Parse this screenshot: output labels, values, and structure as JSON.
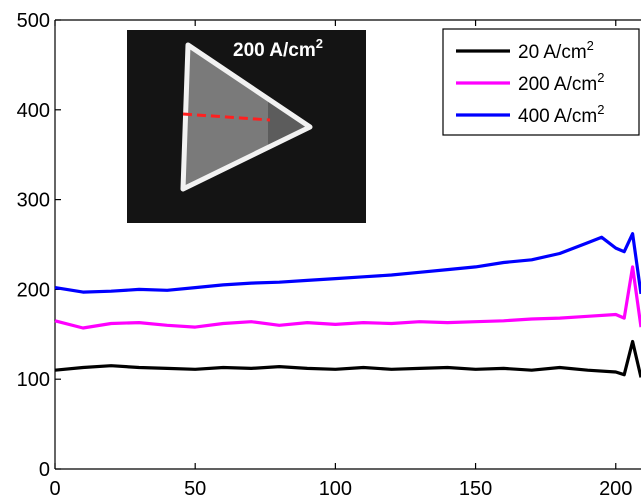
{
  "chart_data": {
    "type": "line",
    "title": "",
    "xlabel": "",
    "ylabel": "",
    "xlim": [
      0,
      209
    ],
    "ylim": [
      0,
      500
    ],
    "xticks": [
      0,
      50,
      100,
      150,
      200
    ],
    "yticks": [
      0,
      100,
      200,
      300,
      400,
      500
    ],
    "grid": false,
    "legend_position": "top-right",
    "series": [
      {
        "name": "20 A/cm",
        "name_sup": "2",
        "color": "#000000",
        "x": [
          0,
          10,
          20,
          30,
          40,
          50,
          60,
          70,
          80,
          90,
          100,
          110,
          120,
          130,
          140,
          150,
          160,
          170,
          180,
          190,
          200,
          203,
          206,
          209
        ],
        "y": [
          110,
          113,
          115,
          113,
          112,
          111,
          113,
          112,
          114,
          112,
          111,
          113,
          111,
          112,
          113,
          111,
          112,
          110,
          113,
          110,
          108,
          105,
          142,
          102
        ]
      },
      {
        "name": "200 A/cm",
        "name_sup": "2",
        "color": "#ff00ff",
        "x": [
          0,
          10,
          20,
          30,
          40,
          50,
          60,
          70,
          80,
          90,
          100,
          110,
          120,
          130,
          140,
          150,
          160,
          170,
          180,
          190,
          200,
          203,
          206,
          209
        ],
        "y": [
          165,
          157,
          162,
          163,
          160,
          158,
          162,
          164,
          160,
          163,
          161,
          163,
          162,
          164,
          163,
          164,
          165,
          167,
          168,
          170,
          172,
          168,
          225,
          158
        ]
      },
      {
        "name": "400 A/cm",
        "name_sup": "2",
        "color": "#0000ff",
        "x": [
          0,
          10,
          20,
          30,
          40,
          50,
          60,
          70,
          80,
          90,
          100,
          110,
          120,
          130,
          140,
          150,
          160,
          170,
          180,
          190,
          195,
          200,
          203,
          206,
          209
        ],
        "y": [
          202,
          197,
          198,
          200,
          199,
          202,
          205,
          207,
          208,
          210,
          212,
          214,
          216,
          219,
          222,
          225,
          230,
          233,
          240,
          252,
          258,
          246,
          242,
          262,
          195
        ]
      }
    ]
  },
  "inset": {
    "label": "200 A/cm",
    "label_sup": "2"
  }
}
